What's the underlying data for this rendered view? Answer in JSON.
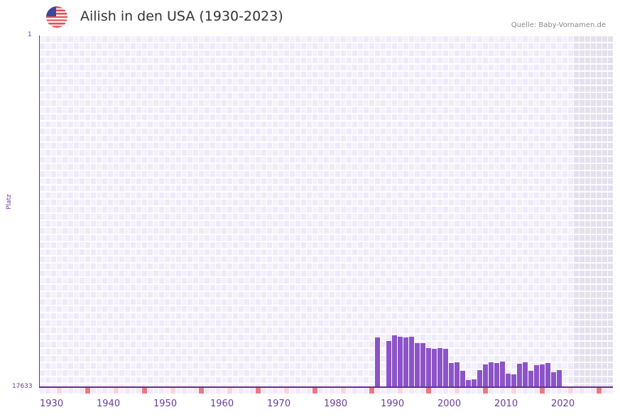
{
  "header": {
    "title": "Ailish in den USA (1930-2023)",
    "source": "Quelle: Baby-Vornamen.de",
    "flag_icon": "us-flag-icon"
  },
  "colors": {
    "bar": "#8c54c8",
    "axis": "#6a2c9a",
    "grid_a": "#efeafa",
    "grid_b": "#f4f1fc",
    "future": "#e4e0ee",
    "marker_decade": "#e87a82",
    "marker_half": "#f6d6de"
  },
  "chart_data": {
    "type": "bar",
    "title": "Ailish in den USA (1930-2023)",
    "xlabel": "",
    "ylabel": "Platz",
    "ylim": [
      17633,
      1
    ],
    "y_inverted": true,
    "y_ticks": [
      "1",
      "17633"
    ],
    "x_ticks": [
      "1930",
      "1940",
      "1950",
      "1960",
      "1970",
      "1980",
      "1990",
      "2000",
      "2010",
      "2020"
    ],
    "x_range": [
      1930,
      2030
    ],
    "shaded_future_from": 2024,
    "grid": true,
    "categories": [
      1989,
      1990,
      1991,
      1992,
      1993,
      1994,
      1995,
      1996,
      1997,
      1998,
      1999,
      2000,
      2001,
      2002,
      2003,
      2004,
      2005,
      2006,
      2007,
      2008,
      2009,
      2010,
      2011,
      2012,
      2013,
      2014,
      2015,
      2016,
      2017,
      2018,
      2019,
      2020,
      2021
    ],
    "values": [
      15140,
      null,
      15320,
      15040,
      15110,
      15140,
      15110,
      15430,
      15430,
      15680,
      15710,
      15680,
      15710,
      16430,
      16390,
      16820,
      17280,
      17240,
      16780,
      16500,
      16390,
      16430,
      16350,
      16960,
      17000,
      16460,
      16390,
      16820,
      16530,
      16500,
      16430,
      16890,
      16780
    ]
  }
}
